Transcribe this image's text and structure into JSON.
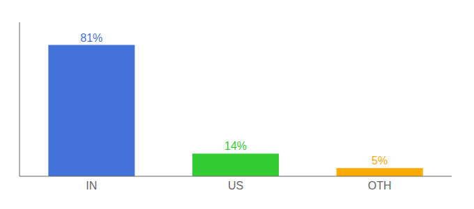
{
  "chart_data": {
    "type": "bar",
    "categories": [
      "IN",
      "US",
      "OTH"
    ],
    "values": [
      81,
      14,
      5
    ],
    "value_labels": [
      "81%",
      "14%",
      "5%"
    ],
    "data_labels": true,
    "colors": [
      "#4472db",
      "#33cc33",
      "#ffaa00"
    ],
    "ylim": [
      0,
      95
    ],
    "yticks": [],
    "tick_labels": "x"
  }
}
